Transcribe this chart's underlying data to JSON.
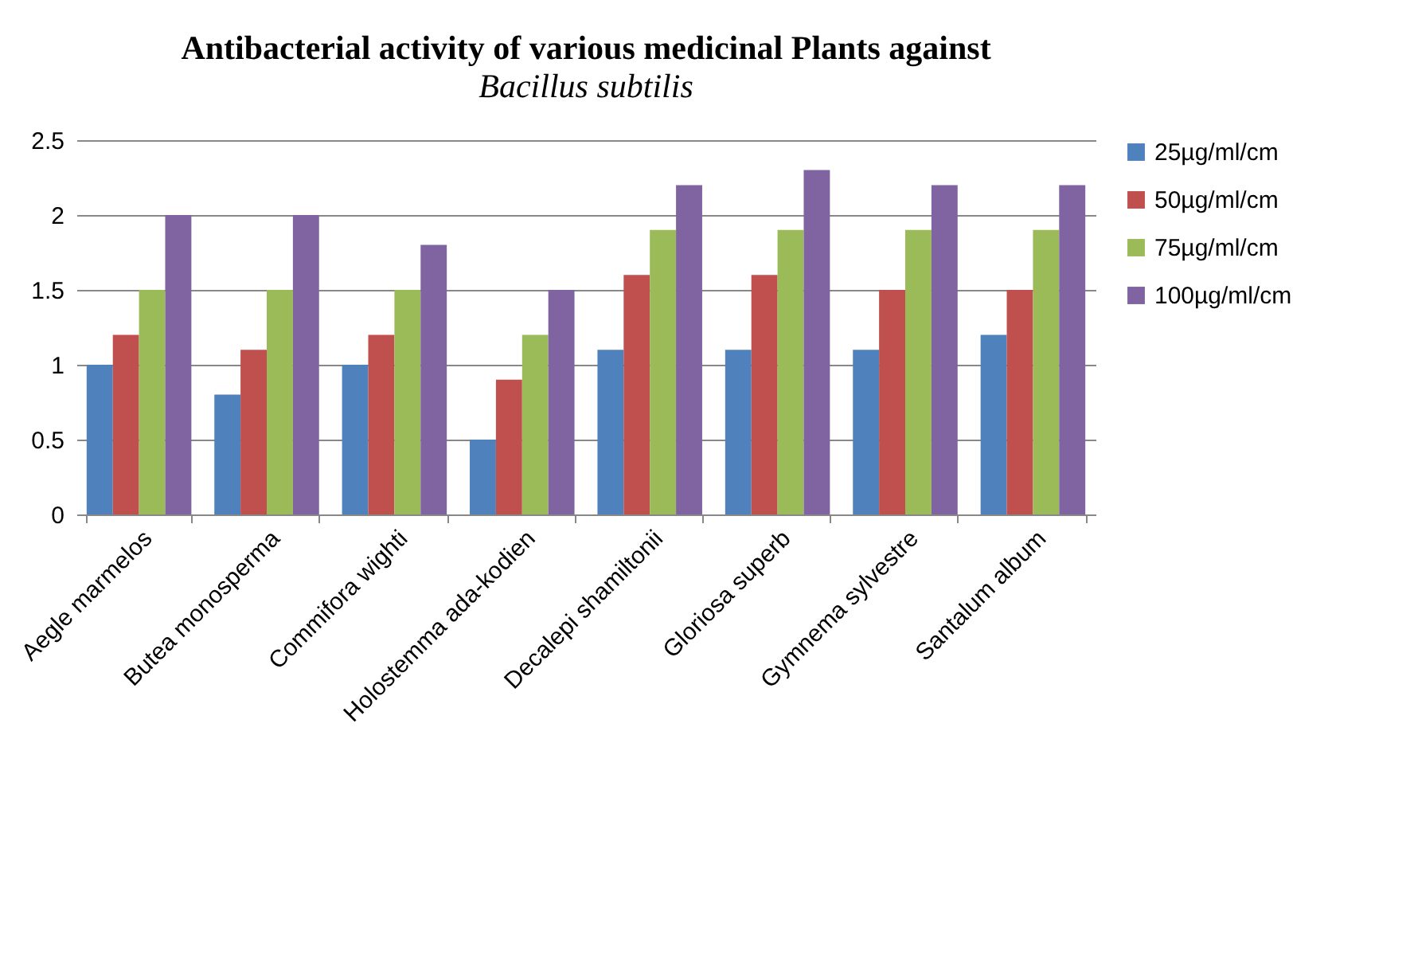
{
  "chart_data": {
    "type": "bar",
    "title": "Antibacterial activity of various medicinal Plants against",
    "subtitle": "Bacillus subtilis",
    "categories": [
      "Aegle marmelos",
      "Butea monosperma",
      "Commifora wighti",
      "Holostemma ada-kodien",
      "Decalepi shamiltonii",
      "Gloriosa superb",
      "Gymnema sylvestre",
      "Santalum album"
    ],
    "series": [
      {
        "name": "25µg/ml/cm",
        "color": "#4f81bd",
        "values": [
          1,
          0.8,
          1,
          0.5,
          1.1,
          1.1,
          1.1,
          1.2
        ]
      },
      {
        "name": "50µg/ml/cm",
        "color": "#c0504d",
        "values": [
          1.2,
          1.1,
          1.2,
          0.9,
          1.6,
          1.6,
          1.5,
          1.5
        ]
      },
      {
        "name": "75µg/ml/cm",
        "color": "#9bbb59",
        "values": [
          1.5,
          1.5,
          1.5,
          1.2,
          1.9,
          1.9,
          1.9,
          1.9
        ]
      },
      {
        "name": "100µg/ml/cm",
        "color": "#8064a2",
        "values": [
          2,
          2,
          1.8,
          1.5,
          2.2,
          2.3,
          2.2,
          2.2
        ]
      }
    ],
    "ylim": [
      0,
      2.5
    ],
    "yticks": [
      0,
      0.5,
      1,
      1.5,
      2,
      2.5
    ],
    "grid": "y",
    "legend": "right"
  }
}
